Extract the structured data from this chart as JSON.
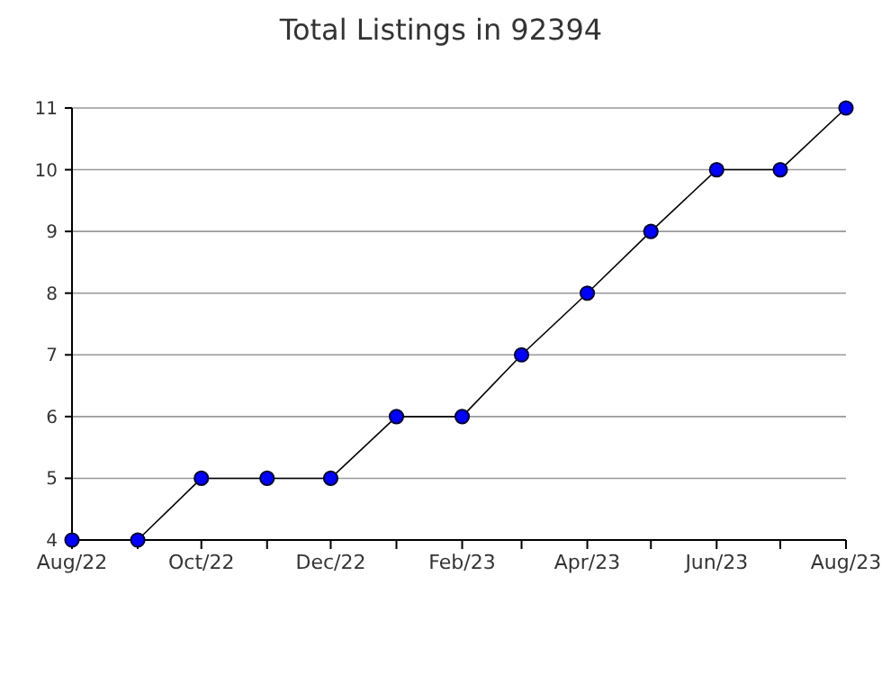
{
  "chart_data": {
    "type": "line",
    "title": "Total Listings in 92394",
    "x": [
      "2022-08",
      "2022-09",
      "2022-10",
      "2022-11",
      "2022-12",
      "2023-01",
      "2023-02",
      "2023-03",
      "2023-04",
      "2023-05",
      "2023-06",
      "2023-07",
      "2023-08"
    ],
    "series": [
      {
        "color": "#0000ff",
        "values": [
          4,
          4,
          5,
          5,
          5,
          6,
          6,
          7,
          8,
          9,
          10,
          10,
          11
        ]
      }
    ],
    "xlim": [
      "2022-08",
      "2023-08"
    ],
    "xticks": [
      {
        "value": "2022-08",
        "label": "Aug/22"
      },
      {
        "value": "2022-09",
        "label": null
      },
      {
        "value": "2022-10",
        "label": "Oct/22"
      },
      {
        "value": "2022-11",
        "label": null
      },
      {
        "value": "2022-12",
        "label": "Dec/22"
      },
      {
        "value": "2023-01",
        "label": null
      },
      {
        "value": "2023-02",
        "label": "Feb/23"
      },
      {
        "value": "2023-03",
        "label": null
      },
      {
        "value": "2023-04",
        "label": "Apr/23"
      },
      {
        "value": "2023-05",
        "label": null
      },
      {
        "value": "2023-06",
        "label": "Jun/23"
      },
      {
        "value": "2023-07",
        "label": null
      },
      {
        "value": "2023-08",
        "label": "Aug/23"
      }
    ],
    "ylim": [
      4,
      11
    ],
    "yticks": [
      4,
      5,
      6,
      7,
      8,
      9,
      10,
      11
    ],
    "grid": "y",
    "marker": "circle",
    "line_style": "solid"
  }
}
